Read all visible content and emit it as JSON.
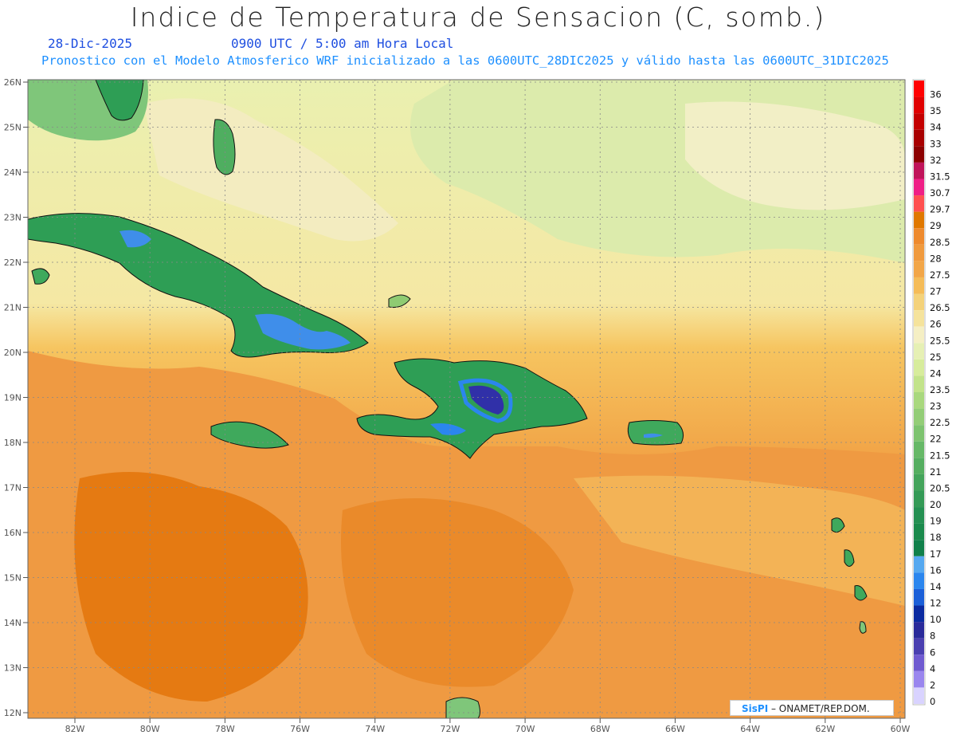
{
  "header": {
    "title": "Indice de Temperatura de Sensacion (C, somb.)",
    "date": "28-Dic-2025",
    "time": "0900 UTC / 5:00 am Hora Local",
    "subtitle": "Pronostico con el Modelo Atmosferico WRF inicializado a las 0600UTC_28DIC2025 y válido hasta las  0600UTC_31DIC2025"
  },
  "map": {
    "lat_labels": [
      "26N",
      "25N",
      "24N",
      "23N",
      "22N",
      "21N",
      "20N",
      "19N",
      "18N",
      "17N",
      "16N",
      "15N",
      "14N",
      "13N",
      "12N"
    ],
    "lon_labels": [
      "82W",
      "80W",
      "78W",
      "76W",
      "74W",
      "72W",
      "70W",
      "68W",
      "66W",
      "64W",
      "62W",
      "60W"
    ],
    "background_color": "#f6c05a",
    "regions": [
      {
        "name": "Atlantic north",
        "color": "#f2e7a2"
      },
      {
        "name": "Caribbean south",
        "color": "#ef8c35"
      },
      {
        "name": "Cuba",
        "color": "#2e9e55"
      },
      {
        "name": "Hispaniola",
        "color": "#2e9e55"
      },
      {
        "name": "Jamaica",
        "color": "#3fa95c"
      },
      {
        "name": "Puerto Rico",
        "color": "#3fa95c"
      }
    ]
  },
  "colorbar": {
    "levels": [
      {
        "label": "36",
        "color": "#ff0000"
      },
      {
        "label": "35",
        "color": "#e00000"
      },
      {
        "label": "34",
        "color": "#c40000"
      },
      {
        "label": "33",
        "color": "#a80000"
      },
      {
        "label": "32",
        "color": "#8c0000"
      },
      {
        "label": "31.5",
        "color": "#c0145a"
      },
      {
        "label": "30.7",
        "color": "#ef1f86"
      },
      {
        "label": "29.7",
        "color": "#ff5050"
      },
      {
        "label": "29",
        "color": "#e07800"
      },
      {
        "label": "28.5",
        "color": "#ee8a2e"
      },
      {
        "label": "28",
        "color": "#f09a3e"
      },
      {
        "label": "27.5",
        "color": "#f2a648"
      },
      {
        "label": "27",
        "color": "#f5bc58"
      },
      {
        "label": "26.5",
        "color": "#f4d27a"
      },
      {
        "label": "26",
        "color": "#f5e39c"
      },
      {
        "label": "25.5",
        "color": "#f5efc4"
      },
      {
        "label": "25",
        "color": "#e6f0b4"
      },
      {
        "label": "24",
        "color": "#d7ec9c"
      },
      {
        "label": "23.5",
        "color": "#c2e38a"
      },
      {
        "label": "23",
        "color": "#a9d87e"
      },
      {
        "label": "22.5",
        "color": "#93cd77"
      },
      {
        "label": "22",
        "color": "#7dc36f"
      },
      {
        "label": "21.5",
        "color": "#66b867"
      },
      {
        "label": "21",
        "color": "#55ae60"
      },
      {
        "label": "20.5",
        "color": "#44a45b"
      },
      {
        "label": "20",
        "color": "#349a56"
      },
      {
        "label": "19",
        "color": "#249052"
      },
      {
        "label": "18",
        "color": "#1a8a4c"
      },
      {
        "label": "17",
        "color": "#10804a"
      },
      {
        "label": "16",
        "color": "#55a8f0"
      },
      {
        "label": "14",
        "color": "#2b86ee"
      },
      {
        "label": "12",
        "color": "#1b5fd8"
      },
      {
        "label": "10",
        "color": "#0a2aa0"
      },
      {
        "label": "8",
        "color": "#2a2a9a"
      },
      {
        "label": "6",
        "color": "#4a3fb0"
      },
      {
        "label": "4",
        "color": "#6f5ad0"
      },
      {
        "label": "2",
        "color": "#9a86ee"
      },
      {
        "label": "0",
        "color": "#d9d3ff"
      }
    ]
  },
  "credit": {
    "brand": "SisPI",
    "text": " – ONAMET/REP.DOM."
  }
}
